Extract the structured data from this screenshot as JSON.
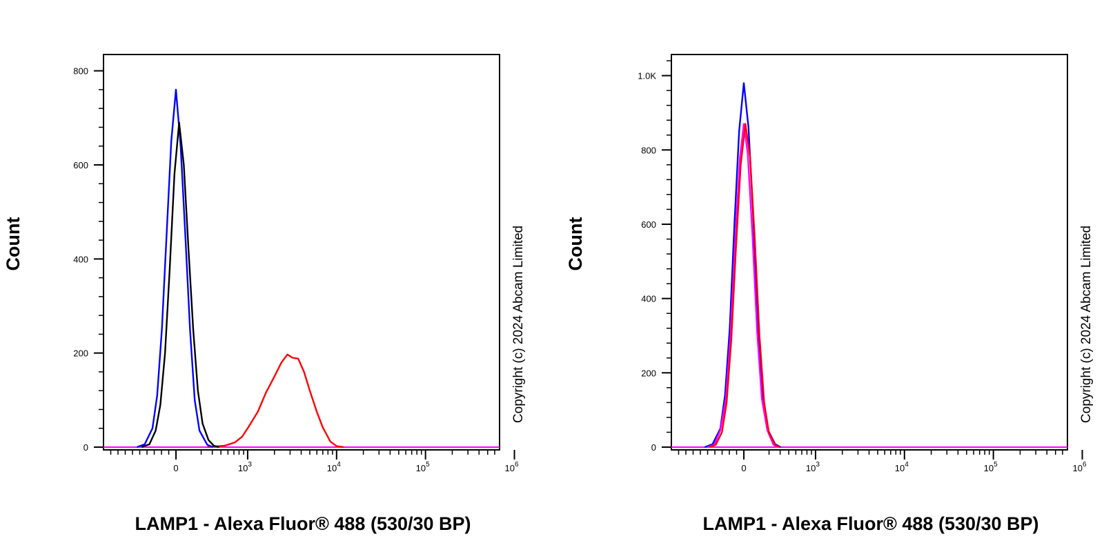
{
  "chart_data": [
    {
      "type": "line",
      "xlabel": "LAMP1 - Alexa Fluor® 488 (530/30 BP)",
      "ylabel": "Count",
      "x_scale": "biexponential",
      "x_ticks": [
        "0",
        "10^3",
        "10^4",
        "10^5",
        "10^6"
      ],
      "y_ticks": [
        "0",
        "200",
        "400",
        "600",
        "800"
      ],
      "ylim": [
        0,
        840
      ],
      "watermark": "Copyright (c) 2024 Abcam Limited",
      "series": [
        {
          "color": "#ff0000",
          "x": [
            200,
            400,
            600,
            800,
            1000,
            1300,
            1600,
            2000,
            2400,
            2800,
            3200,
            3700,
            4300,
            5000,
            6000,
            7000,
            8500,
            10000,
            12000
          ],
          "y": [
            0,
            3,
            10,
            22,
            40,
            75,
            115,
            150,
            180,
            197,
            190,
            188,
            160,
            120,
            75,
            42,
            12,
            2,
            0
          ]
        },
        {
          "color": "#0000ff",
          "x": [
            -250,
            -200,
            -150,
            -120,
            -90,
            -60,
            -30,
            0,
            30,
            60,
            90,
            120,
            150,
            200,
            250
          ],
          "y": [
            0,
            6,
            40,
            110,
            250,
            450,
            650,
            760,
            640,
            450,
            250,
            100,
            35,
            5,
            0
          ]
        },
        {
          "color": "#000000",
          "x": [
            -220,
            -170,
            -130,
            -100,
            -70,
            -40,
            -10,
            20,
            50,
            80,
            110,
            140,
            170,
            210,
            260,
            320
          ],
          "y": [
            0,
            6,
            35,
            90,
            200,
            380,
            580,
            690,
            600,
            420,
            250,
            120,
            50,
            15,
            3,
            0
          ]
        }
      ]
    },
    {
      "type": "line",
      "xlabel": "LAMP1 - Alexa Fluor® 488 (530/30 BP)",
      "ylabel": "Count",
      "x_scale": "biexponential",
      "x_ticks": [
        "0",
        "10^3",
        "10^4",
        "10^5",
        "10^6"
      ],
      "y_ticks": [
        "0",
        "200",
        "400",
        "600",
        "800",
        "1.0K"
      ],
      "ylim": [
        0,
        1050
      ],
      "watermark": "Copyright (c) 2024 Abcam Limited",
      "series": [
        {
          "color": "#0000ff",
          "x": [
            -250,
            -200,
            -150,
            -120,
            -90,
            -60,
            -30,
            0,
            30,
            60,
            90,
            120,
            150,
            200,
            250
          ],
          "y": [
            0,
            8,
            50,
            140,
            320,
            600,
            850,
            980,
            860,
            620,
            340,
            140,
            50,
            8,
            0
          ]
        },
        {
          "color": "#ff00ff",
          "x": [
            -230,
            -190,
            -150,
            -115,
            -85,
            -55,
            -25,
            0,
            25,
            55,
            85,
            115,
            150,
            190,
            230
          ],
          "y": [
            0,
            6,
            45,
            130,
            300,
            560,
            780,
            870,
            790,
            570,
            310,
            130,
            45,
            6,
            0
          ]
        },
        {
          "color": "#ff0000",
          "x": [
            -220,
            -180,
            -140,
            -110,
            -80,
            -50,
            -20,
            10,
            40,
            70,
            100,
            130,
            160,
            200,
            240
          ],
          "y": [
            0,
            6,
            40,
            120,
            290,
            540,
            760,
            870,
            780,
            560,
            300,
            120,
            40,
            6,
            0
          ]
        }
      ]
    }
  ]
}
